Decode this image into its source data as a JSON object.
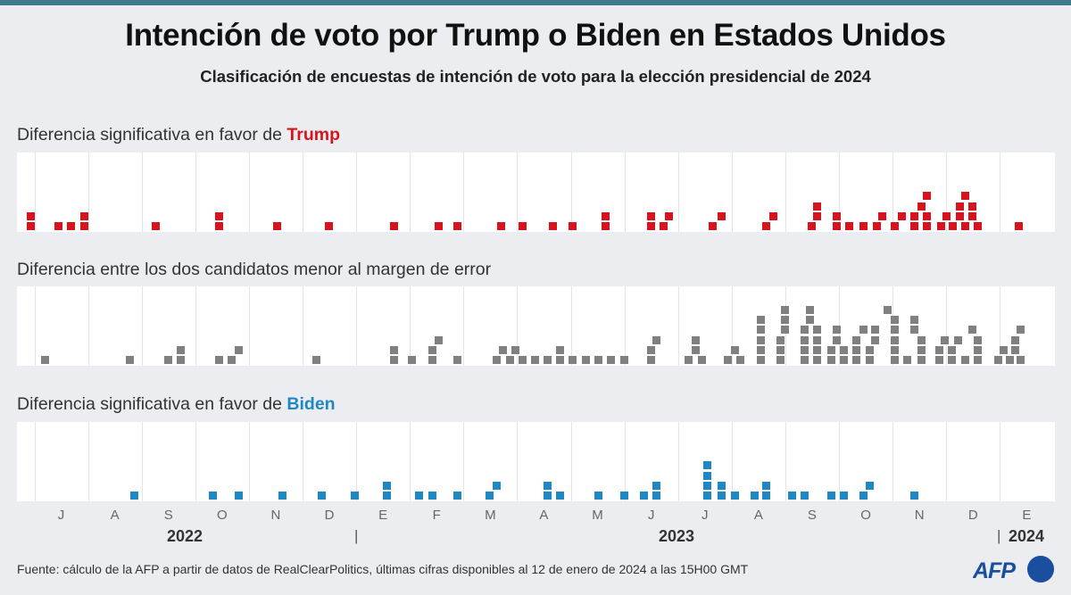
{
  "header": {
    "title": "Intención de voto por Trump o Biden en Estados Unidos",
    "subtitle": "Clasificación de encuestas de intención de voto para la elección presidencial de 2024"
  },
  "chart_data": {
    "type": "scatter",
    "title": "Intención de voto por Trump o Biden en Estados Unidos",
    "subtitle": "Clasificación de encuestas de intención de voto para la elección presidencial de 2024",
    "x_axis": {
      "months": [
        "J",
        "A",
        "S",
        "O",
        "N",
        "D",
        "E",
        "F",
        "M",
        "A",
        "M",
        "J",
        "J",
        "A",
        "S",
        "O",
        "N",
        "D",
        "E"
      ],
      "range": [
        "2022-06",
        "2024-01"
      ],
      "years": {
        "y2022": "2022",
        "sep1": "|",
        "y2023": "2023",
        "sep2": "|",
        "y2024": "2024"
      }
    },
    "grid": true,
    "panels": [
      {
        "label_prefix": "Diferencia significativa en favor de ",
        "label_highlight": "Trump",
        "color": "#d7141d",
        "polls": [
          "2022-06-29",
          "2022-06-29",
          "2022-07-15",
          "2022-07-22",
          "2022-07-30",
          "2022-07-30",
          "2022-09-09",
          "2022-10-15",
          "2022-10-15",
          "2022-11-17",
          "2022-12-16",
          "2023-01-23",
          "2023-02-16",
          "2023-02-26",
          "2023-03-23",
          "2023-04-04",
          "2023-04-21",
          "2023-05-02",
          "2023-05-21",
          "2023-05-21",
          "2023-06-16",
          "2023-06-16",
          "2023-06-23",
          "2023-06-26",
          "2023-07-21",
          "2023-07-26",
          "2023-08-21",
          "2023-08-25",
          "2023-09-16",
          "2023-09-19",
          "2023-09-19",
          "2023-09-30",
          "2023-09-30",
          "2023-10-07",
          "2023-10-15",
          "2023-10-23",
          "2023-10-26",
          "2023-11-02",
          "2023-11-06",
          "2023-11-13",
          "2023-11-13",
          "2023-11-17",
          "2023-11-20",
          "2023-11-20",
          "2023-11-20",
          "2023-11-28",
          "2023-12-01",
          "2023-12-05",
          "2023-12-09",
          "2023-12-09",
          "2023-12-12",
          "2023-12-12",
          "2023-12-16",
          "2023-12-16",
          "2023-12-19",
          "2024-01-12"
        ]
      },
      {
        "label_prefix": "Diferencia entre los dos candidatos menor al margen de error",
        "label_highlight": "",
        "color": "#808080",
        "polls": [
          "2022-07-07",
          "2022-08-25",
          "2022-09-16",
          "2022-09-23",
          "2022-09-23",
          "2022-10-15",
          "2022-10-22",
          "2022-10-26",
          "2022-12-09",
          "2023-01-23",
          "2023-01-23",
          "2023-02-02",
          "2023-02-13",
          "2023-02-13",
          "2023-02-16",
          "2023-02-26",
          "2023-03-20",
          "2023-03-24",
          "2023-03-28",
          "2023-03-31",
          "2023-04-04",
          "2023-04-11",
          "2023-04-18",
          "2023-04-25",
          "2023-04-25",
          "2023-05-02",
          "2023-05-10",
          "2023-05-17",
          "2023-05-24",
          "2023-06-01",
          "2023-06-16",
          "2023-06-16",
          "2023-06-19",
          "2023-07-07",
          "2023-07-11",
          "2023-07-11",
          "2023-07-15",
          "2023-07-30",
          "2023-08-03",
          "2023-08-06",
          "2023-08-18",
          "2023-08-18",
          "2023-08-18",
          "2023-08-18",
          "2023-08-18",
          "2023-08-29",
          "2023-08-29",
          "2023-08-29",
          "2023-09-01",
          "2023-09-01",
          "2023-09-01",
          "2023-09-12",
          "2023-09-12",
          "2023-09-12",
          "2023-09-12",
          "2023-09-15",
          "2023-09-15",
          "2023-09-19",
          "2023-09-19",
          "2023-09-19",
          "2023-09-19",
          "2023-09-27",
          "2023-09-27",
          "2023-09-30",
          "2023-09-30",
          "2023-10-04",
          "2023-10-04",
          "2023-10-11",
          "2023-10-11",
          "2023-10-11",
          "2023-10-15",
          "2023-10-19",
          "2023-10-19",
          "2023-10-22",
          "2023-10-22",
          "2023-11-02",
          "2023-11-02",
          "2023-11-02",
          "2023-11-02",
          "2023-11-02",
          "2023-10-29",
          "2023-11-09",
          "2023-11-17",
          "2023-11-17",
          "2023-11-17",
          "2023-11-13",
          "2023-11-13",
          "2023-11-27",
          "2023-11-27",
          "2023-11-30",
          "2023-12-04",
          "2023-12-04",
          "2023-12-08",
          "2023-12-12",
          "2023-12-19",
          "2023-12-19",
          "2023-12-19",
          "2023-12-16",
          "2023-12-31",
          "2024-01-07",
          "2024-01-03",
          "2024-01-10",
          "2024-01-10",
          "2024-01-13",
          "2024-01-13"
        ]
      },
      {
        "label_prefix": "Diferencia significativa en favor de ",
        "label_highlight": "Biden",
        "color": "#1f88c2",
        "polls": [
          "2022-08-28",
          "2022-10-11",
          "2022-10-26",
          "2022-11-20",
          "2022-12-12",
          "2022-12-31",
          "2023-01-19",
          "2023-01-19",
          "2023-02-06",
          "2023-02-13",
          "2023-02-26",
          "2023-03-16",
          "2023-03-20",
          "2023-04-18",
          "2023-04-18",
          "2023-04-25",
          "2023-05-17",
          "2023-06-01",
          "2023-06-12",
          "2023-06-19",
          "2023-06-19",
          "2023-07-18",
          "2023-07-18",
          "2023-07-18",
          "2023-07-18",
          "2023-07-26",
          "2023-07-26",
          "2023-08-03",
          "2023-08-14",
          "2023-08-21",
          "2023-08-21",
          "2023-09-05",
          "2023-09-12",
          "2023-09-27",
          "2023-10-04",
          "2023-10-15",
          "2023-10-19",
          "2023-11-13"
        ]
      }
    ]
  },
  "footer": {
    "source": "Fuente:  cálculo de la AFP a partir de datos de RealClearPolitics, últimas cifras disponibles al 12 de enero de 2024 a las 15H00 GMT"
  },
  "logo": {
    "text": "AFP",
    "color": "#1a4fa0"
  }
}
